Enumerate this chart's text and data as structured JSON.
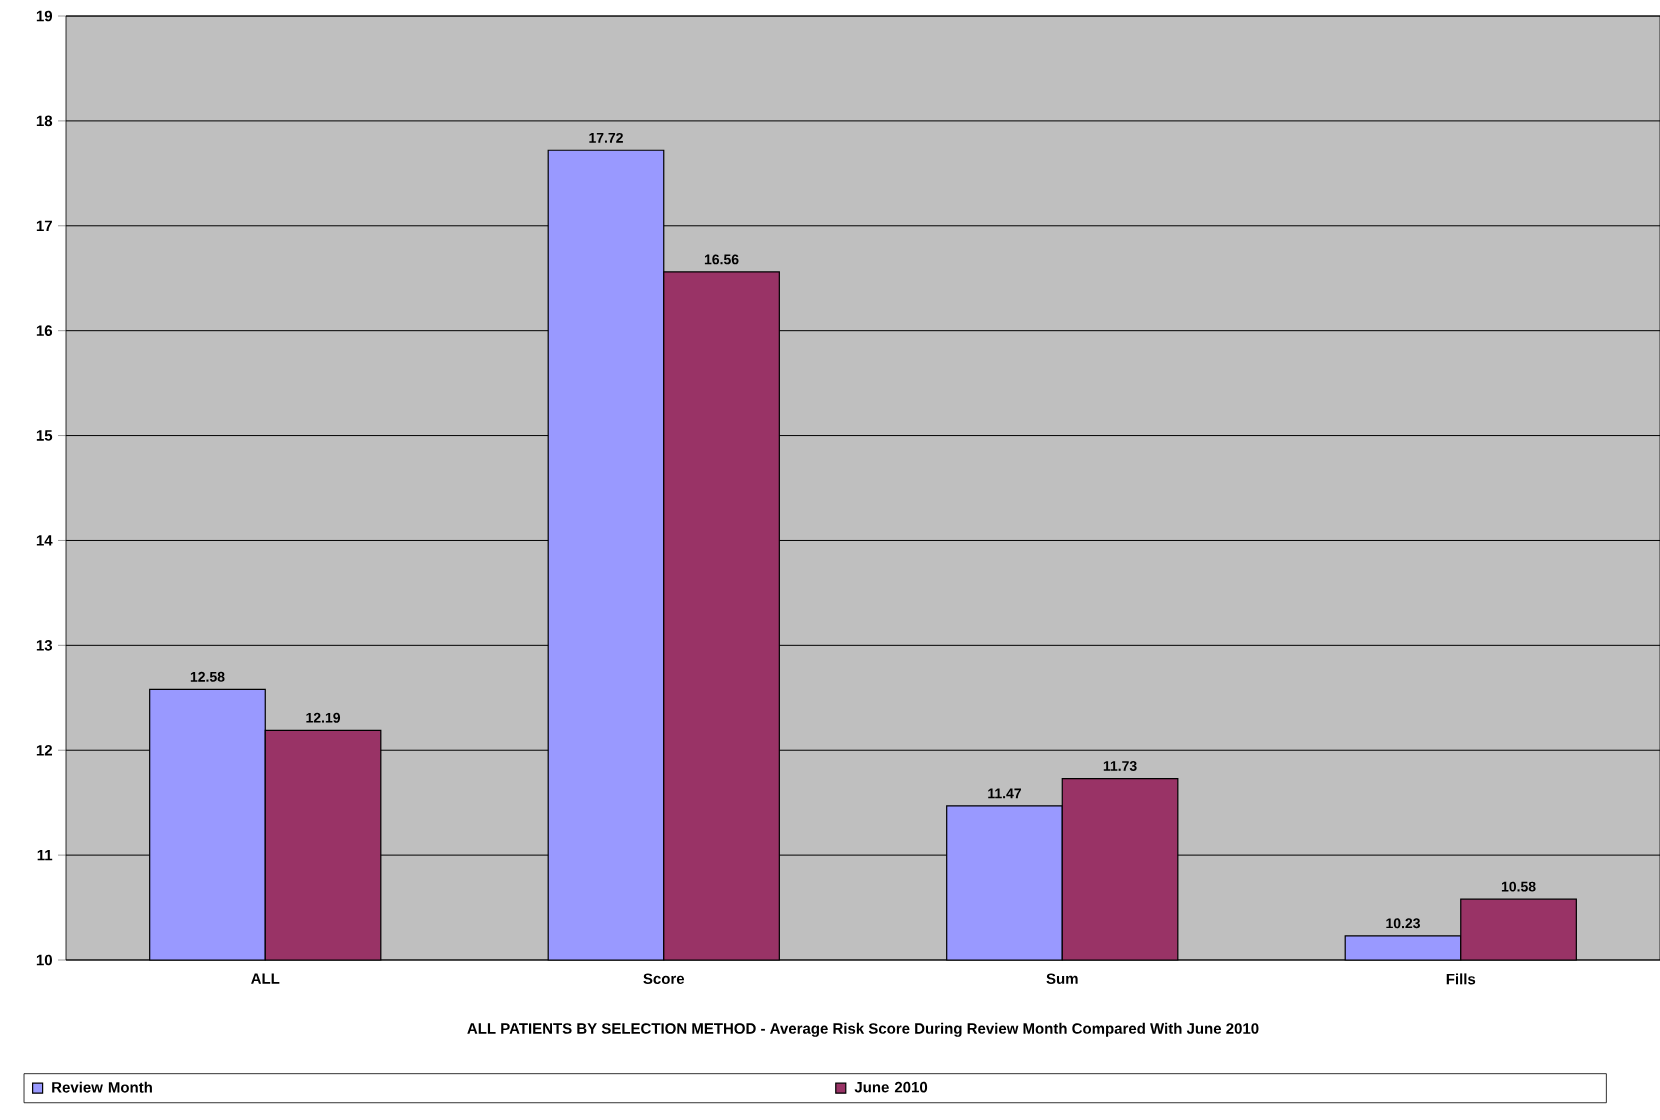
{
  "chart_data": {
    "type": "bar",
    "xlabel": "ALL PATIENTS BY SELECTION METHOD - Average Risk Score During Review Month Compared With June 2010",
    "categories": [
      "ALL",
      "Score",
      "Sum",
      "Fills"
    ],
    "series": [
      {
        "name": "Review Month",
        "color": "#9999ff",
        "values": [
          12.58,
          17.72,
          11.47,
          10.23
        ]
      },
      {
        "name": "June 2010",
        "color": "#993366",
        "values": [
          12.19,
          16.56,
          11.73,
          10.58
        ]
      }
    ],
    "ylim": [
      10,
      19
    ],
    "yticks": [
      10,
      11,
      12,
      13,
      14,
      15,
      16,
      17,
      18,
      19
    ],
    "grid": "y",
    "legend": "bottom",
    "data_labels": true
  }
}
